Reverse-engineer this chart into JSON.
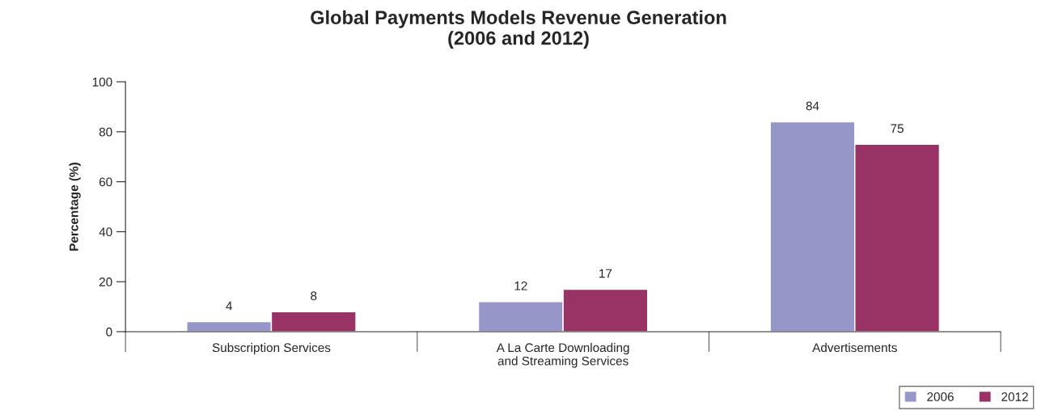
{
  "chart_data": {
    "type": "bar",
    "title": "Global Payments Models Revenue Generation\n(2006 and 2012)",
    "ylabel": "Percentage (%)",
    "categories": [
      "Subscription Services",
      "A La Carte Downloading\nand Streaming Services",
      "Advertisements"
    ],
    "series": [
      {
        "name": "2006",
        "color": "#9696c8",
        "values": [
          4,
          12,
          84
        ]
      },
      {
        "name": "2012",
        "color": "#993366",
        "values": [
          8,
          17,
          75
        ]
      }
    ],
    "ylim": [
      0,
      100
    ],
    "yticks": [
      0,
      20,
      40,
      60,
      80,
      100
    ],
    "grid": false,
    "legend": "bottom right",
    "data_labels": true
  }
}
